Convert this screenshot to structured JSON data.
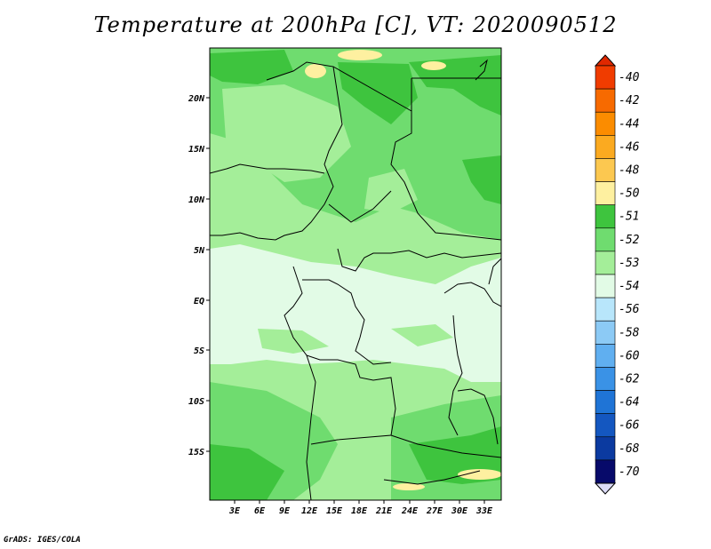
{
  "title": "Temperature at 200hPa [C], VT: 2020090512",
  "footer": "GrADS: IGES/COLA",
  "axes": {
    "lat_ticks": [
      "20N",
      "15N",
      "10N",
      "5N",
      "EQ",
      "5S",
      "10S",
      "15S"
    ],
    "lon_ticks": [
      "3E",
      "6E",
      "9E",
      "12E",
      "15E",
      "18E",
      "21E",
      "24E",
      "27E",
      "30E",
      "33E"
    ]
  },
  "colorbar": {
    "levels": [
      "-40",
      "-42",
      "-44",
      "-46",
      "-48",
      "-50",
      "-51",
      "-52",
      "-53",
      "-54",
      "-56",
      "-58",
      "-60",
      "-62",
      "-64",
      "-66",
      "-68",
      "-70"
    ],
    "colors": [
      "#f03c00",
      "#f76a00",
      "#fb8c00",
      "#fbaa20",
      "#fcc850",
      "#fef0a0",
      "#3ec43e",
      "#6fdc6f",
      "#a4ee99",
      "#e2fbe6",
      "#b8e6fb",
      "#8ccaf5",
      "#60aff0",
      "#3a92e6",
      "#1f74d6",
      "#1457c0",
      "#0b3aa0",
      "#070a6a"
    ],
    "top_tip_color": "#e02800",
    "bottom_tip_color": "#dcdcf8"
  },
  "colors": {
    "green_dark": "#3ec43e",
    "green_mid": "#6fdc6f",
    "green_light": "#a4ee99",
    "cyan_pale": "#e2fbe6",
    "yellow": "#fef0a0"
  }
}
